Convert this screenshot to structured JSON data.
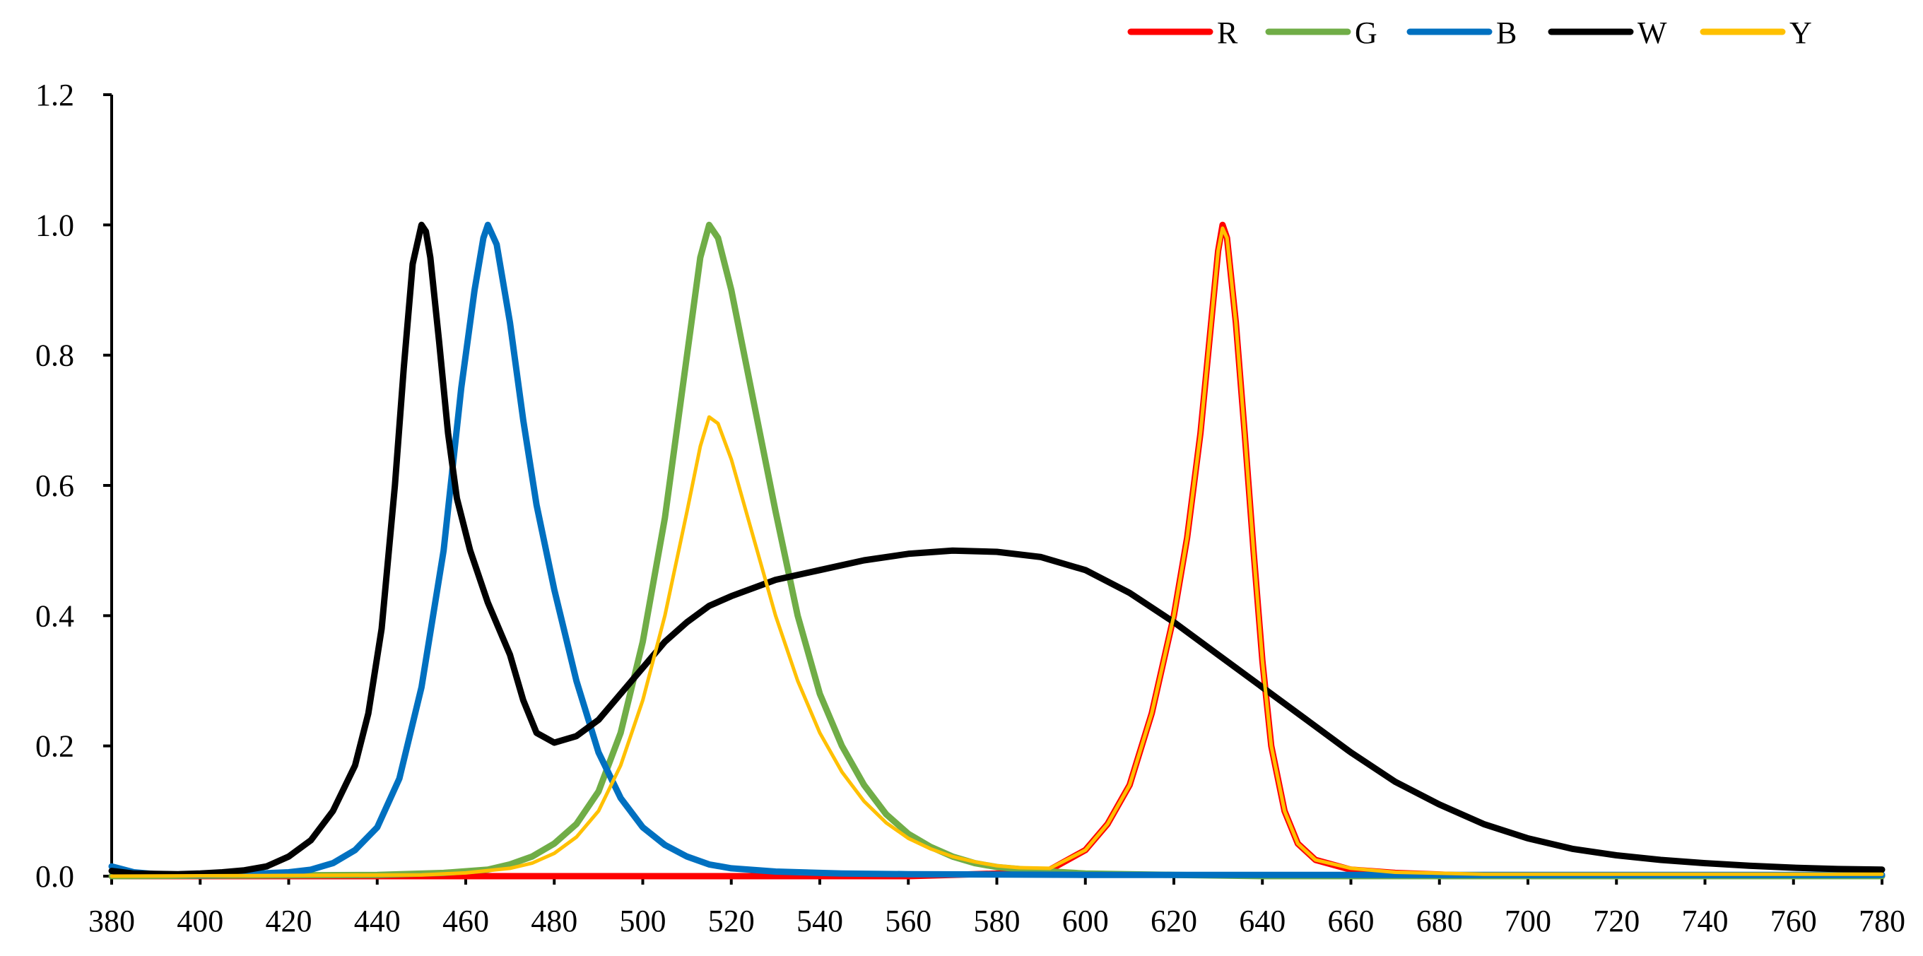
{
  "chart_data": {
    "type": "line",
    "title": "",
    "xlabel": "",
    "ylabel": "",
    "xlim": [
      380,
      780
    ],
    "ylim": [
      0,
      1.2
    ],
    "x_ticks": [
      "380",
      "400",
      "420",
      "440",
      "460",
      "480",
      "500",
      "520",
      "540",
      "560",
      "580",
      "600",
      "620",
      "640",
      "660",
      "680",
      "700",
      "720",
      "740",
      "760",
      "780"
    ],
    "y_ticks": [
      "0.0",
      "0.2",
      "0.4",
      "0.6",
      "0.8",
      "1.0",
      "1.2"
    ],
    "grid": false,
    "legend_position": "top-right",
    "series": [
      {
        "name": "R",
        "color": "#ff0000",
        "points": [
          [
            380,
            0
          ],
          [
            560,
            0
          ],
          [
            585,
            0.005
          ],
          [
            592,
            0.01
          ],
          [
            600,
            0.04
          ],
          [
            605,
            0.08
          ],
          [
            610,
            0.14
          ],
          [
            615,
            0.25
          ],
          [
            620,
            0.4
          ],
          [
            623,
            0.52
          ],
          [
            626,
            0.68
          ],
          [
            628,
            0.82
          ],
          [
            630,
            0.96
          ],
          [
            631,
            1.0
          ],
          [
            632,
            0.98
          ],
          [
            634,
            0.85
          ],
          [
            636,
            0.68
          ],
          [
            638,
            0.5
          ],
          [
            640,
            0.33
          ],
          [
            642,
            0.2
          ],
          [
            645,
            0.1
          ],
          [
            648,
            0.05
          ],
          [
            652,
            0.025
          ],
          [
            660,
            0.01
          ],
          [
            670,
            0.005
          ],
          [
            690,
            0
          ],
          [
            780,
            0
          ]
        ]
      },
      {
        "name": "G",
        "color": "#70ad47",
        "points": [
          [
            380,
            0
          ],
          [
            440,
            0.002
          ],
          [
            455,
            0.005
          ],
          [
            465,
            0.01
          ],
          [
            470,
            0.018
          ],
          [
            475,
            0.03
          ],
          [
            480,
            0.05
          ],
          [
            485,
            0.08
          ],
          [
            490,
            0.13
          ],
          [
            495,
            0.22
          ],
          [
            500,
            0.36
          ],
          [
            505,
            0.55
          ],
          [
            510,
            0.8
          ],
          [
            513,
            0.95
          ],
          [
            515,
            1.0
          ],
          [
            517,
            0.98
          ],
          [
            520,
            0.9
          ],
          [
            525,
            0.73
          ],
          [
            530,
            0.56
          ],
          [
            535,
            0.4
          ],
          [
            540,
            0.28
          ],
          [
            545,
            0.2
          ],
          [
            550,
            0.14
          ],
          [
            555,
            0.095
          ],
          [
            560,
            0.065
          ],
          [
            565,
            0.045
          ],
          [
            570,
            0.03
          ],
          [
            575,
            0.02
          ],
          [
            580,
            0.014
          ],
          [
            590,
            0.008
          ],
          [
            600,
            0.004
          ],
          [
            620,
            0.002
          ],
          [
            640,
            0
          ],
          [
            780,
            0
          ]
        ]
      },
      {
        "name": "B",
        "color": "#0070c0",
        "points": [
          [
            380,
            0.015
          ],
          [
            385,
            0.006
          ],
          [
            390,
            0.003
          ],
          [
            400,
            0.002
          ],
          [
            410,
            0.003
          ],
          [
            420,
            0.006
          ],
          [
            425,
            0.01
          ],
          [
            430,
            0.02
          ],
          [
            435,
            0.04
          ],
          [
            440,
            0.075
          ],
          [
            445,
            0.15
          ],
          [
            450,
            0.29
          ],
          [
            455,
            0.5
          ],
          [
            459,
            0.75
          ],
          [
            462,
            0.9
          ],
          [
            464,
            0.98
          ],
          [
            465,
            1.0
          ],
          [
            467,
            0.97
          ],
          [
            470,
            0.85
          ],
          [
            473,
            0.7
          ],
          [
            476,
            0.57
          ],
          [
            480,
            0.44
          ],
          [
            485,
            0.3
          ],
          [
            490,
            0.19
          ],
          [
            495,
            0.12
          ],
          [
            500,
            0.075
          ],
          [
            505,
            0.048
          ],
          [
            510,
            0.03
          ],
          [
            515,
            0.018
          ],
          [
            520,
            0.012
          ],
          [
            530,
            0.007
          ],
          [
            545,
            0.004
          ],
          [
            560,
            0.003
          ],
          [
            600,
            0.002
          ],
          [
            700,
            0.002
          ],
          [
            780,
            0.002
          ]
        ]
      },
      {
        "name": "W",
        "color": "#000000",
        "points": [
          [
            380,
            0.008
          ],
          [
            385,
            0.004
          ],
          [
            395,
            0.003
          ],
          [
            400,
            0.004
          ],
          [
            405,
            0.006
          ],
          [
            410,
            0.009
          ],
          [
            415,
            0.015
          ],
          [
            420,
            0.03
          ],
          [
            425,
            0.055
          ],
          [
            430,
            0.1
          ],
          [
            435,
            0.17
          ],
          [
            438,
            0.25
          ],
          [
            441,
            0.38
          ],
          [
            444,
            0.6
          ],
          [
            446,
            0.78
          ],
          [
            448,
            0.94
          ],
          [
            450,
            1.0
          ],
          [
            451,
            0.99
          ],
          [
            452,
            0.95
          ],
          [
            454,
            0.82
          ],
          [
            456,
            0.68
          ],
          [
            458,
            0.58
          ],
          [
            461,
            0.5
          ],
          [
            465,
            0.42
          ],
          [
            470,
            0.34
          ],
          [
            473,
            0.27
          ],
          [
            476,
            0.22
          ],
          [
            480,
            0.205
          ],
          [
            485,
            0.215
          ],
          [
            490,
            0.24
          ],
          [
            495,
            0.28
          ],
          [
            500,
            0.32
          ],
          [
            505,
            0.36
          ],
          [
            510,
            0.39
          ],
          [
            515,
            0.415
          ],
          [
            520,
            0.43
          ],
          [
            530,
            0.455
          ],
          [
            540,
            0.47
          ],
          [
            550,
            0.485
          ],
          [
            560,
            0.495
          ],
          [
            570,
            0.5
          ],
          [
            580,
            0.498
          ],
          [
            590,
            0.49
          ],
          [
            600,
            0.47
          ],
          [
            610,
            0.435
          ],
          [
            620,
            0.39
          ],
          [
            630,
            0.34
          ],
          [
            640,
            0.29
          ],
          [
            650,
            0.24
          ],
          [
            660,
            0.19
          ],
          [
            670,
            0.145
          ],
          [
            680,
            0.11
          ],
          [
            690,
            0.08
          ],
          [
            700,
            0.058
          ],
          [
            710,
            0.042
          ],
          [
            720,
            0.032
          ],
          [
            730,
            0.025
          ],
          [
            740,
            0.02
          ],
          [
            750,
            0.016
          ],
          [
            760,
            0.013
          ],
          [
            770,
            0.011
          ],
          [
            780,
            0.01
          ]
        ]
      },
      {
        "name": "Y",
        "color": "#ffc000",
        "points": [
          [
            380,
            0
          ],
          [
            450,
            0.002
          ],
          [
            460,
            0.005
          ],
          [
            470,
            0.012
          ],
          [
            475,
            0.02
          ],
          [
            480,
            0.035
          ],
          [
            485,
            0.06
          ],
          [
            490,
            0.1
          ],
          [
            495,
            0.17
          ],
          [
            500,
            0.27
          ],
          [
            505,
            0.4
          ],
          [
            510,
            0.56
          ],
          [
            513,
            0.66
          ],
          [
            515,
            0.705
          ],
          [
            517,
            0.695
          ],
          [
            520,
            0.64
          ],
          [
            525,
            0.52
          ],
          [
            530,
            0.4
          ],
          [
            535,
            0.3
          ],
          [
            540,
            0.22
          ],
          [
            545,
            0.16
          ],
          [
            550,
            0.115
          ],
          [
            555,
            0.082
          ],
          [
            560,
            0.058
          ],
          [
            565,
            0.042
          ],
          [
            570,
            0.03
          ],
          [
            575,
            0.022
          ],
          [
            580,
            0.016
          ],
          [
            585,
            0.013
          ],
          [
            592,
            0.012
          ],
          [
            600,
            0.04
          ],
          [
            605,
            0.08
          ],
          [
            610,
            0.14
          ],
          [
            615,
            0.25
          ],
          [
            620,
            0.4
          ],
          [
            623,
            0.52
          ],
          [
            626,
            0.68
          ],
          [
            628,
            0.82
          ],
          [
            630,
            0.96
          ],
          [
            631,
            0.995
          ],
          [
            632,
            0.98
          ],
          [
            634,
            0.85
          ],
          [
            636,
            0.68
          ],
          [
            638,
            0.5
          ],
          [
            640,
            0.33
          ],
          [
            642,
            0.2
          ],
          [
            645,
            0.1
          ],
          [
            648,
            0.05
          ],
          [
            652,
            0.025
          ],
          [
            660,
            0.012
          ],
          [
            670,
            0.006
          ],
          [
            690,
            0.003
          ],
          [
            740,
            0.003
          ],
          [
            780,
            0.003
          ]
        ]
      }
    ]
  }
}
